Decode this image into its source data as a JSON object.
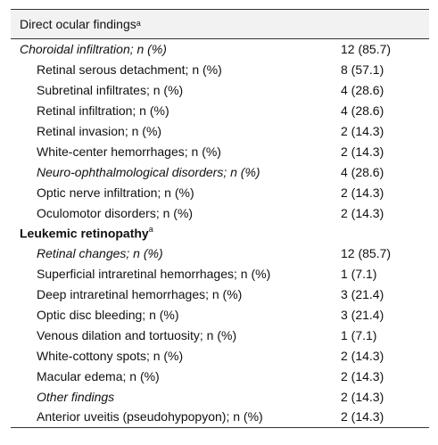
{
  "table": {
    "header": {
      "text": "Direct ocular findings",
      "superscript": "a"
    },
    "rows": [
      {
        "label": "Choroidal infiltration; n (%)",
        "value": "12 (85.7)",
        "level": 0,
        "style": "italic",
        "sup": ""
      },
      {
        "label": "Retinal serous detachment; n (%)",
        "value": "8 (57.1)",
        "level": 1,
        "style": "normal",
        "sup": ""
      },
      {
        "label": "Subretinal infiltrates; n (%)",
        "value": "4 (28.6)",
        "level": 1,
        "style": "normal",
        "sup": ""
      },
      {
        "label": "Retinal infiltration; n (%)",
        "value": "4 (28.6)",
        "level": 1,
        "style": "normal",
        "sup": ""
      },
      {
        "label": "Retinal invasion; n (%)",
        "value": "2 (14.3)",
        "level": 1,
        "style": "normal",
        "sup": ""
      },
      {
        "label": "White-center hemorrhages; n (%)",
        "value": "2 (14.3)",
        "level": 1,
        "style": "normal",
        "sup": ""
      },
      {
        "label": "Neuro-ophthalmological disorders; n (%)",
        "value": "4 (28.6)",
        "level": 1,
        "style": "italic",
        "sup": ""
      },
      {
        "label": "Optic nerve infiltration; n (%)",
        "value": "2 (14.3)",
        "level": 1,
        "style": "normal",
        "sup": ""
      },
      {
        "label": "Oculomotor disorders; n (%)",
        "value": "2 (14.3)",
        "level": 1,
        "style": "normal",
        "sup": ""
      },
      {
        "label": "Leukemic retinopathy",
        "value": "",
        "level": 0,
        "style": "bold",
        "sup": "a"
      },
      {
        "label": "Retinal changes; n (%)",
        "value": "12 (85.7)",
        "level": 1,
        "style": "italic",
        "sup": ""
      },
      {
        "label": "Superficial intraretinal hemorrhages; n (%)",
        "value": "1 (7.1)",
        "level": 1,
        "style": "normal",
        "sup": ""
      },
      {
        "label": "Deep intraretinal hemorrhages; n (%)",
        "value": "3 (21.4)",
        "level": 1,
        "style": "normal",
        "sup": ""
      },
      {
        "label": "Optic disc bleeding; n (%)",
        "value": "3 (21.4)",
        "level": 1,
        "style": "normal",
        "sup": ""
      },
      {
        "label": "Venous dilation and tortuosity; n (%)",
        "value": "1 (7.1)",
        "level": 1,
        "style": "normal",
        "sup": ""
      },
      {
        "label": "White-cottony spots; n (%)",
        "value": "2 (14.3)",
        "level": 1,
        "style": "normal",
        "sup": ""
      },
      {
        "label": "Macular edema; n (%)",
        "value": "2 (14.3)",
        "level": 1,
        "style": "normal",
        "sup": ""
      },
      {
        "label": "Other findings",
        "value": "2 (14.3)",
        "level": 1,
        "style": "italic",
        "sup": ""
      },
      {
        "label": "Anterior uveitis (pseudohypopyon); n (%)",
        "value": "2 (14.3)",
        "level": 1,
        "style": "normal",
        "sup": ""
      }
    ]
  }
}
